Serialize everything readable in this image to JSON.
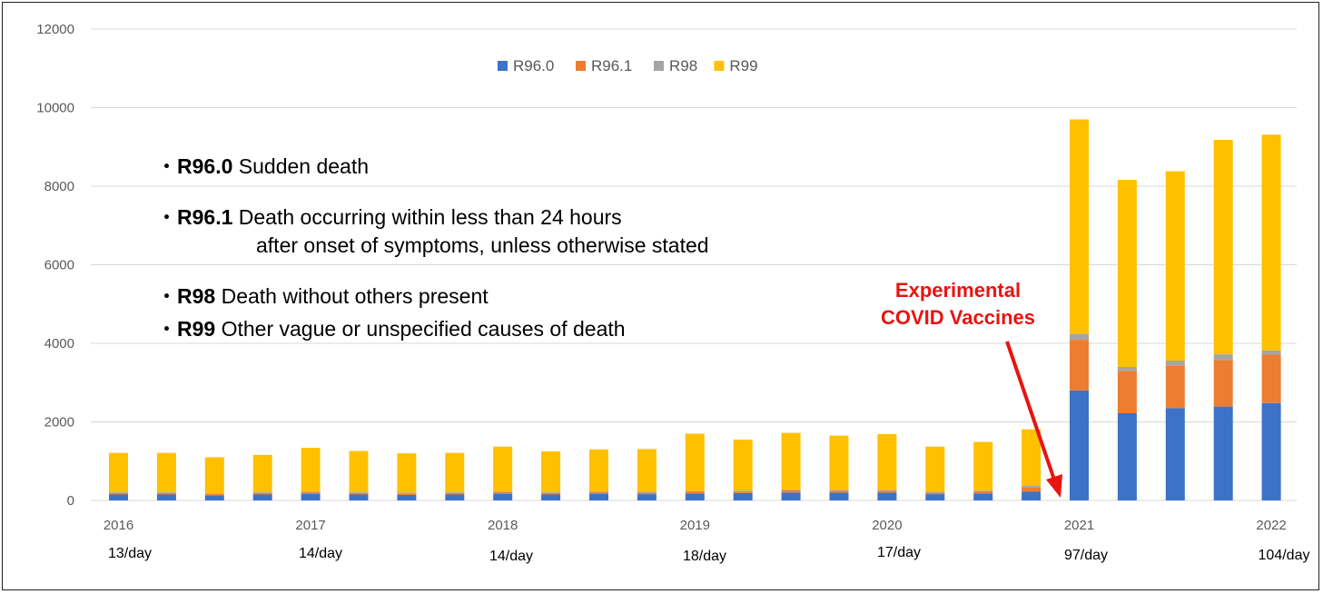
{
  "chart_data": {
    "type": "bar",
    "stacked": true,
    "ylim": [
      0,
      12000
    ],
    "yticks": [
      0,
      2000,
      4000,
      6000,
      8000,
      10000,
      12000
    ],
    "grid": true,
    "legend_position": "top-center",
    "categories": [
      "2016 P1",
      "2016 P2",
      "2016 P3",
      "2016 P4",
      "2017 P1",
      "2017 P2",
      "2017 P3",
      "2017 P4",
      "2018 P1",
      "2018 P2",
      "2018 P3",
      "2018 P4",
      "2019 P1",
      "2019 P2",
      "2019 P3",
      "2019 P4",
      "2020 P1",
      "2020 P2",
      "2020 P3",
      "2020 P4",
      "2021 P1",
      "2021 P2",
      "2021 P3",
      "2021 P4",
      "2022 P1"
    ],
    "x_axis_labels": [
      "2016",
      "2017",
      "2018",
      "2019",
      "2020",
      "2021",
      "2022"
    ],
    "per_day_labels": [
      "13/day",
      "14/day",
      "14/day",
      "18/day",
      "17/day",
      "97/day",
      "104/day"
    ],
    "series": [
      {
        "name": "R96.0",
        "color": "#3c72c8",
        "values": [
          150,
          150,
          130,
          150,
          170,
          150,
          140,
          150,
          170,
          150,
          170,
          160,
          180,
          190,
          200,
          200,
          200,
          160,
          180,
          220,
          2800,
          2220,
          2350,
          2390,
          2480
        ]
      },
      {
        "name": "R96.1",
        "color": "#ed7d31",
        "values": [
          40,
          40,
          30,
          40,
          40,
          40,
          40,
          40,
          40,
          40,
          40,
          40,
          40,
          40,
          60,
          50,
          50,
          40,
          50,
          120,
          1290,
          1080,
          1090,
          1180,
          1230
        ]
      },
      {
        "name": "R98",
        "color": "#a5a5a5",
        "values": [
          20,
          20,
          20,
          20,
          20,
          20,
          20,
          20,
          20,
          20,
          20,
          20,
          20,
          20,
          20,
          20,
          20,
          20,
          20,
          30,
          150,
          100,
          120,
          150,
          110
        ]
      },
      {
        "name": "R99",
        "color": "#ffc000",
        "values": [
          1000,
          1000,
          920,
          950,
          1110,
          1050,
          1000,
          1000,
          1140,
          1040,
          1070,
          1090,
          1460,
          1300,
          1440,
          1380,
          1420,
          1150,
          1240,
          1440,
          5460,
          4760,
          4820,
          5460,
          5490
        ]
      }
    ]
  },
  "definitions": [
    {
      "code": "R96.0",
      "text": " Sudden death"
    },
    {
      "code": "R96.1",
      "text": " Death occurring within less than 24 hours",
      "cont": "after onset of symptoms, unless otherwise stated"
    },
    {
      "code": "R98",
      "text": " Death without others present"
    },
    {
      "code": "R99",
      "text": " Other vague or unspecified causes of death"
    }
  ],
  "bullet": "・",
  "annotation": {
    "line1": "Experimental",
    "line2": "COVID Vaccines",
    "color": "#e8140f"
  }
}
